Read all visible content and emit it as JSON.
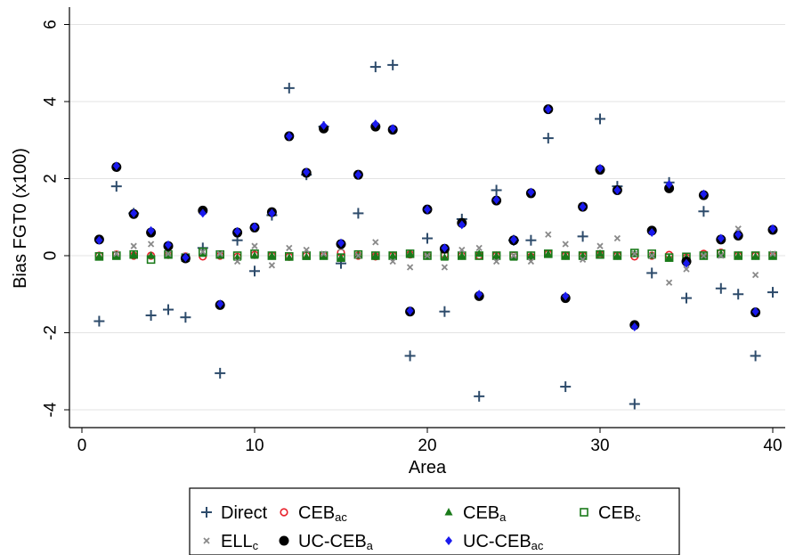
{
  "chart_data": {
    "type": "scatter",
    "xlabel": "Area",
    "ylabel": "Bias FGT0 (x100)",
    "xlim": [
      0,
      40
    ],
    "ylim": [
      -4,
      6
    ],
    "xticks": [
      0,
      10,
      20,
      30,
      40
    ],
    "yticks": [
      -4,
      -2,
      0,
      2,
      4,
      6
    ],
    "grid": "horizontal",
    "legend_position": "bottom",
    "x": [
      1,
      2,
      3,
      4,
      5,
      6,
      7,
      8,
      9,
      10,
      11,
      12,
      13,
      14,
      15,
      16,
      17,
      18,
      19,
      20,
      21,
      22,
      23,
      24,
      25,
      26,
      27,
      28,
      29,
      30,
      31,
      32,
      33,
      34,
      35,
      36,
      37,
      38,
      39,
      40
    ],
    "series": [
      {
        "name": "Direct",
        "marker": "plus",
        "color": "#2d4b6b",
        "values": [
          -1.7,
          1.8,
          1.1,
          -1.55,
          -1.4,
          -1.6,
          0.2,
          -3.05,
          0.4,
          -0.4,
          1.05,
          4.35,
          2.1,
          3.35,
          -0.2,
          1.1,
          4.9,
          4.95,
          -2.6,
          0.45,
          -1.45,
          0.95,
          -3.65,
          1.7,
          0.4,
          0.4,
          3.05,
          -3.4,
          0.5,
          3.55,
          1.8,
          -3.85,
          -0.45,
          1.9,
          -1.1,
          1.15,
          -0.85,
          -1.0,
          -2.6,
          -0.95
        ]
      },
      {
        "name": "CEB",
        "sub": "ac",
        "marker": "circle-open",
        "color": "#e8202a",
        "values": [
          0.0,
          0.03,
          0.0,
          0.0,
          0.02,
          -0.02,
          -0.02,
          0.0,
          -0.03,
          0.02,
          0.0,
          -0.03,
          0.0,
          0.0,
          0.08,
          0.0,
          -0.02,
          0.0,
          0.03,
          0.0,
          0.02,
          0.0,
          0.0,
          0.0,
          0.0,
          -0.03,
          0.05,
          0.0,
          0.0,
          0.03,
          0.0,
          -0.02,
          0.0,
          0.02,
          -0.05,
          0.05,
          0.08,
          0.0,
          0.0,
          0.0
        ]
      },
      {
        "name": "CEB",
        "sub": "a",
        "marker": "triangle",
        "color": "#1a7a1a",
        "values": [
          -0.02,
          0.0,
          0.03,
          0.0,
          0.03,
          -0.05,
          0.05,
          0.0,
          -0.05,
          0.0,
          0.0,
          -0.05,
          -0.03,
          -0.02,
          -0.05,
          0.0,
          0.0,
          0.0,
          0.05,
          0.0,
          -0.05,
          0.0,
          0.05,
          0.0,
          -0.05,
          0.0,
          0.05,
          0.0,
          0.0,
          0.05,
          0.0,
          0.05,
          0.0,
          -0.05,
          -0.05,
          0.0,
          0.05,
          0.0,
          -0.02,
          0.0
        ]
      },
      {
        "name": "CEB",
        "sub": "c",
        "marker": "square-open",
        "color": "#1a7a1a",
        "values": [
          -0.02,
          0.0,
          0.03,
          -0.1,
          0.03,
          -0.05,
          0.1,
          0.03,
          0.0,
          0.05,
          0.0,
          -0.02,
          0.0,
          0.0,
          -0.05,
          0.03,
          0.0,
          0.0,
          0.05,
          0.0,
          0.0,
          0.0,
          0.0,
          0.0,
          0.0,
          0.0,
          0.05,
          0.0,
          0.0,
          0.03,
          0.0,
          0.07,
          0.05,
          -0.05,
          -0.03,
          0.0,
          0.05,
          0.0,
          0.0,
          0.0
        ]
      },
      {
        "name": "ELL",
        "sub": "c",
        "marker": "x",
        "color": "#8a8a8a",
        "values": [
          0.4,
          0.05,
          0.25,
          0.3,
          0.05,
          0.0,
          0.1,
          0.05,
          -0.15,
          0.25,
          -0.25,
          0.2,
          0.15,
          0.05,
          0.2,
          0.0,
          0.35,
          -0.15,
          -0.3,
          0.0,
          -0.3,
          0.15,
          0.2,
          -0.15,
          0.0,
          -0.15,
          0.55,
          0.3,
          -0.1,
          0.25,
          0.45,
          0.05,
          0.0,
          -0.7,
          -0.35,
          0.0,
          0.0,
          0.7,
          -0.5,
          0.05
        ]
      },
      {
        "name": "UC-CEB",
        "sub": "a",
        "marker": "circle-filled",
        "color": "#000000",
        "values": [
          0.42,
          2.3,
          1.08,
          0.6,
          0.25,
          -0.07,
          1.17,
          -1.28,
          0.6,
          0.73,
          1.13,
          3.1,
          2.15,
          3.3,
          0.3,
          2.1,
          3.35,
          3.27,
          -1.45,
          1.2,
          0.18,
          0.85,
          -1.05,
          1.43,
          0.4,
          1.62,
          3.8,
          -1.1,
          1.27,
          2.23,
          1.7,
          -1.8,
          0.65,
          1.75,
          -0.15,
          1.57,
          0.42,
          0.52,
          -1.47,
          0.67
        ]
      },
      {
        "name": "UC-CEB",
        "sub": "ac",
        "marker": "diamond",
        "color": "#1a1aee",
        "values": [
          0.4,
          2.33,
          1.1,
          0.65,
          0.28,
          -0.05,
          1.1,
          -1.25,
          0.63,
          0.75,
          1.1,
          3.1,
          2.17,
          3.38,
          0.33,
          2.1,
          3.42,
          3.3,
          -1.43,
          1.2,
          0.2,
          0.8,
          -1.0,
          1.45,
          0.42,
          1.65,
          3.8,
          -1.05,
          1.27,
          2.27,
          1.7,
          -1.85,
          0.6,
          1.85,
          -0.2,
          1.6,
          0.45,
          0.55,
          -1.45,
          0.7
        ]
      }
    ]
  }
}
